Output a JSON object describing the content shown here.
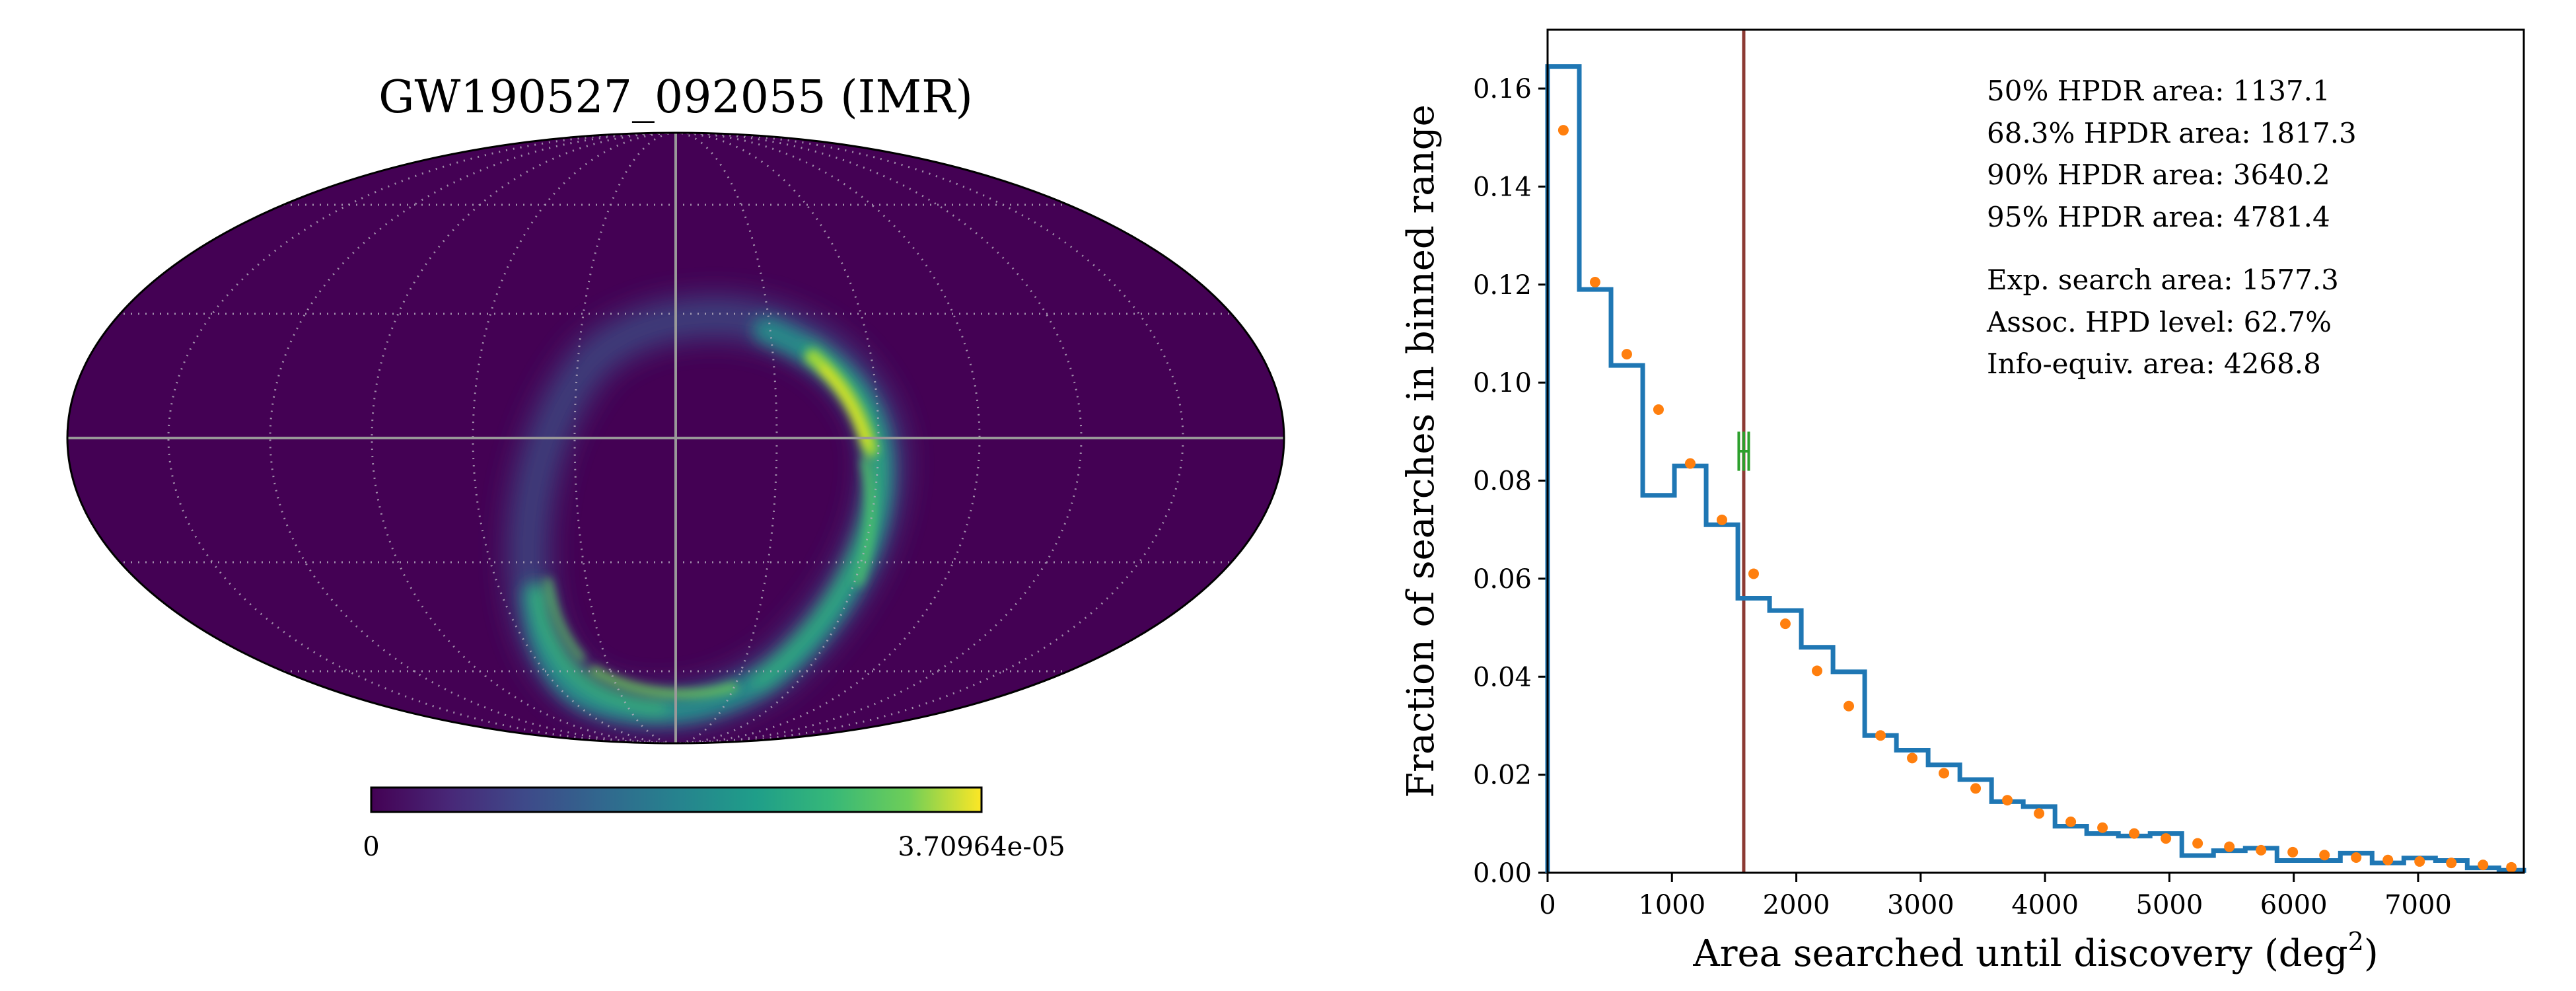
{
  "colors": {
    "background": "#440154",
    "histogram": "#1f77b4",
    "points": "#ff7f0e",
    "marker_line": "#8c3a33",
    "errorbar": "#2ca02c",
    "grid": "#b8b0c0",
    "graticule_main": "#999999"
  },
  "skymap": {
    "title": "GW190527_092055 (IMR)",
    "colorbar": {
      "min_label": "0",
      "max_label": "3.70964e-05",
      "colormap": "viridis"
    }
  },
  "chart_data": {
    "type": "bar",
    "xlabel": "Area searched until discovery (deg",
    "xlabel_sup": "2",
    "xlabel_close": ")",
    "ylabel": "Fraction of searches in binned range",
    "xlim": [
      0,
      7850
    ],
    "ylim": [
      0,
      0.172
    ],
    "xticks": [
      0,
      1000,
      2000,
      3000,
      4000,
      5000,
      6000,
      7000
    ],
    "xtick_labels": [
      "0",
      "1000",
      "2000",
      "3000",
      "4000",
      "5000",
      "6000",
      "7000"
    ],
    "yticks": [
      0.0,
      0.02,
      0.04,
      0.06,
      0.08,
      0.1,
      0.12,
      0.14,
      0.16
    ],
    "ytick_labels": [
      "0.00",
      "0.02",
      "0.04",
      "0.06",
      "0.08",
      "0.10",
      "0.12",
      "0.14",
      "0.16"
    ],
    "histogram": {
      "bin_edges": [
        0,
        255,
        510,
        765,
        1020,
        1275,
        1530,
        1785,
        2040,
        2295,
        2550,
        2805,
        3060,
        3315,
        3570,
        3825,
        4080,
        4335,
        4590,
        4845,
        5100,
        5355,
        5610,
        5865,
        6120,
        6375,
        6630,
        6885,
        7140,
        7395,
        7650,
        7850
      ],
      "values": [
        0.1645,
        0.119,
        0.1035,
        0.077,
        0.083,
        0.071,
        0.056,
        0.0535,
        0.046,
        0.041,
        0.028,
        0.025,
        0.022,
        0.019,
        0.0145,
        0.0135,
        0.0095,
        0.008,
        0.0075,
        0.008,
        0.0035,
        0.0045,
        0.005,
        0.0025,
        0.0025,
        0.004,
        0.002,
        0.003,
        0.0025,
        0.001,
        0.0005
      ]
    },
    "points": {
      "x": [
        127,
        382,
        637,
        892,
        1147,
        1402,
        1657,
        1912,
        2167,
        2422,
        2677,
        2932,
        3187,
        3442,
        3697,
        3952,
        4207,
        4462,
        4717,
        4972,
        5227,
        5482,
        5737,
        5992,
        6247,
        6502,
        6757,
        7012,
        7267,
        7522,
        7750
      ],
      "y": [
        0.1515,
        0.1205,
        0.1058,
        0.0945,
        0.0835,
        0.072,
        0.061,
        0.0508,
        0.0412,
        0.034,
        0.028,
        0.0234,
        0.0203,
        0.0172,
        0.0148,
        0.0121,
        0.0104,
        0.0092,
        0.008,
        0.007,
        0.006,
        0.0053,
        0.0046,
        0.0042,
        0.0036,
        0.0031,
        0.0026,
        0.0023,
        0.002,
        0.0016,
        0.0011
      ]
    },
    "vline_x": 1577.3,
    "errorbar": {
      "x": 1577.3,
      "y": 0.086,
      "xerr": 40,
      "yerr": 0.004
    },
    "stats": [
      "50% HPDR area: 1137.1",
      "68.3% HPDR area: 1817.3",
      "90% HPDR area: 3640.2",
      "95% HPDR area: 4781.4",
      "Exp. search area: 1577.3",
      "Assoc. HPD level: 62.7%",
      "Info-equiv. area: 4268.8"
    ]
  }
}
